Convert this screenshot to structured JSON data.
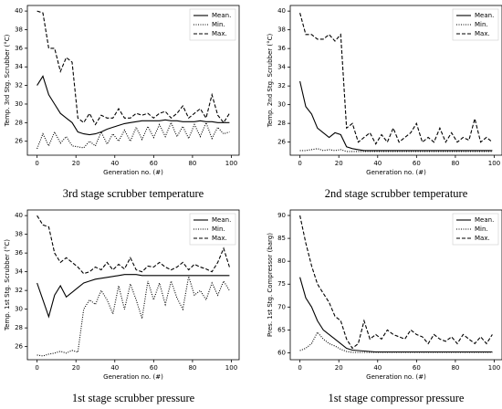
{
  "chart_data": [
    {
      "type": "line",
      "title": "3rd stage scrubber temperature",
      "x_label": "Generation no. (#)",
      "y_label": "Temp. 3rd Stg. Scrubber (°C)",
      "x": [
        0,
        3,
        6,
        9,
        12,
        15,
        18,
        21,
        24,
        27,
        30,
        33,
        36,
        39,
        42,
        45,
        48,
        51,
        54,
        57,
        60,
        63,
        66,
        69,
        72,
        75,
        78,
        81,
        84,
        87,
        90,
        93,
        96,
        99
      ],
      "xlim": [
        -5,
        104
      ],
      "xticks": [
        0,
        20,
        40,
        60,
        80,
        100
      ],
      "ylim": [
        24.5,
        40.6
      ],
      "yticks": [
        26,
        28,
        30,
        32,
        34,
        36,
        38,
        40
      ],
      "legend": "upper right",
      "series": [
        {
          "name": "Mean.",
          "color": "#000000",
          "linestyle": "solid",
          "values": [
            32,
            33,
            31,
            30,
            29,
            28.5,
            28,
            27,
            26.8,
            26.7,
            26.8,
            27,
            27.3,
            27.5,
            27.7,
            27.9,
            28,
            28.1,
            28.2,
            28.2,
            28.2,
            28.2,
            28.3,
            28.2,
            28.2,
            28.1,
            28.1,
            28.1,
            28.2,
            28.1,
            28.1,
            28,
            28,
            28
          ]
        },
        {
          "name": "Min.",
          "color": "#000000",
          "linestyle": "dotted",
          "values": [
            25.2,
            26.8,
            25.5,
            27,
            25.8,
            26.5,
            25.5,
            25.4,
            25.3,
            26,
            25.5,
            27,
            25.7,
            26.8,
            26,
            27.2,
            26,
            27.5,
            26.2,
            27.6,
            26.4,
            27.8,
            26.5,
            28,
            26.5,
            27.6,
            26.3,
            27.8,
            26.5,
            28,
            26.3,
            27.5,
            26.8,
            27
          ]
        },
        {
          "name": "Max.",
          "color": "#000000",
          "linestyle": "dashed",
          "values": [
            40,
            39.8,
            36,
            36,
            33.5,
            35,
            34.5,
            28.5,
            28,
            29,
            27.8,
            28.8,
            28.5,
            28.5,
            29.5,
            28.5,
            28.5,
            29,
            28.8,
            29,
            28.5,
            29,
            29.2,
            28.5,
            29,
            29.8,
            28.5,
            29,
            29.5,
            28.5,
            31,
            28.8,
            28,
            29
          ]
        }
      ]
    },
    {
      "type": "line",
      "title": "2nd stage scrubber temperature",
      "x_label": "Generation no. (#)",
      "y_label": "Temp. 2nd Stg. Scrubber (°C)",
      "x": [
        0,
        3,
        6,
        9,
        12,
        15,
        18,
        21,
        24,
        27,
        30,
        33,
        36,
        39,
        42,
        45,
        48,
        51,
        54,
        57,
        60,
        63,
        66,
        69,
        72,
        75,
        78,
        81,
        84,
        87,
        90,
        93,
        96,
        99
      ],
      "xlim": [
        -5,
        104
      ],
      "xticks": [
        0,
        20,
        40,
        60,
        80,
        100
      ],
      "ylim": [
        24.6,
        40.6
      ],
      "yticks": [
        26,
        28,
        30,
        32,
        34,
        36,
        38,
        40
      ],
      "legend": "upper right",
      "series": [
        {
          "name": "Mean.",
          "color": "#000000",
          "linestyle": "solid",
          "values": [
            32.5,
            29.8,
            29,
            27.5,
            27,
            26.5,
            27,
            26.8,
            25.5,
            25.3,
            25.2,
            25.1,
            25.1,
            25.1,
            25.1,
            25.1,
            25.1,
            25.1,
            25.1,
            25.1,
            25.1,
            25.1,
            25.1,
            25.1,
            25.1,
            25.1,
            25.1,
            25.1,
            25.1,
            25.1,
            25.1,
            25.1,
            25.1,
            25.1
          ]
        },
        {
          "name": "Min.",
          "color": "#000000",
          "linestyle": "dotted",
          "values": [
            25.1,
            25.1,
            25.2,
            25.3,
            25.1,
            25.2,
            25.1,
            25.2,
            25,
            25,
            25,
            25,
            25,
            25,
            25,
            25,
            25,
            25,
            25,
            25,
            25,
            25,
            25,
            25,
            25,
            25,
            25,
            25,
            25,
            25,
            25,
            25,
            25,
            25
          ]
        },
        {
          "name": "Max.",
          "color": "#000000",
          "linestyle": "dashed",
          "values": [
            39.8,
            37.5,
            37.5,
            37,
            37,
            37.5,
            36.8,
            37.5,
            27.5,
            28,
            26,
            26.5,
            27,
            25.8,
            26.8,
            26,
            27.5,
            26,
            26.5,
            27,
            28,
            26,
            26.5,
            26,
            27.5,
            26,
            27,
            26,
            26.5,
            26.2,
            28.5,
            26,
            26.5,
            26
          ]
        }
      ]
    },
    {
      "type": "line",
      "title": "1st stage scrubber pressure",
      "x_label": "Generation no. (#)",
      "y_label": "Temp. 1st Stg. Scrubber (°C)",
      "x": [
        0,
        3,
        6,
        9,
        12,
        15,
        18,
        21,
        24,
        27,
        30,
        33,
        36,
        39,
        42,
        45,
        48,
        51,
        54,
        57,
        60,
        63,
        66,
        69,
        72,
        75,
        78,
        81,
        84,
        87,
        90,
        93,
        96,
        99
      ],
      "xlim": [
        -5,
        104
      ],
      "xticks": [
        0,
        20,
        40,
        60,
        80,
        100
      ],
      "ylim": [
        24.6,
        40.6
      ],
      "yticks": [
        26,
        28,
        30,
        32,
        34,
        36,
        38,
        40
      ],
      "legend": "upper right",
      "series": [
        {
          "name": "Mean.",
          "color": "#000000",
          "linestyle": "solid",
          "values": [
            32.8,
            31,
            29.2,
            31.5,
            32.5,
            31.3,
            31.8,
            32.3,
            32.8,
            33,
            33.2,
            33.3,
            33.4,
            33.5,
            33.6,
            33.7,
            33.7,
            33.7,
            33.6,
            33.6,
            33.6,
            33.6,
            33.6,
            33.6,
            33.6,
            33.6,
            33.6,
            33.6,
            33.6,
            33.6,
            33.6,
            33.6,
            33.6,
            33.6
          ]
        },
        {
          "name": "Min.",
          "color": "#000000",
          "linestyle": "dotted",
          "values": [
            25.1,
            25,
            25.2,
            25.3,
            25.5,
            25.3,
            25.6,
            25.4,
            30,
            31,
            30.5,
            32,
            31,
            29.5,
            32.5,
            30,
            32.7,
            31,
            29,
            33,
            31,
            32.8,
            30.5,
            33,
            31.2,
            30,
            33.5,
            31.5,
            32,
            31,
            32.8,
            31.5,
            33,
            32
          ]
        },
        {
          "name": "Max.",
          "color": "#000000",
          "linestyle": "dashed",
          "values": [
            40,
            39,
            38.8,
            36,
            35,
            35.5,
            35,
            34.5,
            33.8,
            34,
            34.5,
            34.2,
            35,
            34.2,
            34.8,
            34.3,
            35.5,
            34.2,
            34,
            34.6,
            34.5,
            35,
            34.5,
            34.2,
            34.5,
            35,
            34.2,
            34.8,
            34.5,
            34.3,
            34,
            35,
            36.5,
            34.5
          ]
        }
      ]
    },
    {
      "type": "line",
      "title": "1st stage compressor pressure",
      "x_label": "Generation no. (#)",
      "y_label": "Pres. 1st Stg. Compressor (barg)",
      "x": [
        0,
        3,
        6,
        9,
        12,
        15,
        18,
        21,
        24,
        27,
        30,
        33,
        36,
        39,
        42,
        45,
        48,
        51,
        54,
        57,
        60,
        63,
        66,
        69,
        72,
        75,
        78,
        81,
        84,
        87,
        90,
        93,
        96,
        99
      ],
      "xlim": [
        -5,
        104
      ],
      "xticks": [
        0,
        20,
        40,
        60,
        80,
        100
      ],
      "ylim": [
        58.5,
        91.2
      ],
      "yticks": [
        60,
        65,
        70,
        75,
        80,
        85,
        90
      ],
      "legend": "upper right",
      "series": [
        {
          "name": "Mean.",
          "color": "#000000",
          "linestyle": "solid",
          "values": [
            76.5,
            72,
            70,
            67,
            65,
            64,
            63,
            62,
            61,
            60.6,
            60.5,
            60.4,
            60.3,
            60.2,
            60.2,
            60.2,
            60.2,
            60.2,
            60.2,
            60.2,
            60.2,
            60.2,
            60.2,
            60.2,
            60.2,
            60.2,
            60.2,
            60.2,
            60.2,
            60.2,
            60.2,
            60.2,
            60.2,
            60.2
          ]
        },
        {
          "name": "Min.",
          "color": "#000000",
          "linestyle": "dotted",
          "values": [
            60.5,
            61,
            62,
            64.5,
            63,
            62,
            61.5,
            60.8,
            60.3,
            60.1,
            60.1,
            60.1,
            60.1,
            60.1,
            60.1,
            60.1,
            60.1,
            60.1,
            60.1,
            60.1,
            60.1,
            60.1,
            60.1,
            60.1,
            60.1,
            60.1,
            60.1,
            60.1,
            60.1,
            60.1,
            60.1,
            60.1,
            60.1,
            60.1
          ]
        },
        {
          "name": "Max.",
          "color": "#000000",
          "linestyle": "dashed",
          "values": [
            90,
            84,
            79,
            75,
            73,
            71,
            68,
            67,
            63,
            61,
            62,
            67,
            63,
            64,
            63,
            65,
            64,
            63.5,
            63,
            65,
            64,
            63.5,
            62,
            64,
            63,
            62.5,
            63.5,
            62,
            64,
            63,
            62,
            63.5,
            62,
            64
          ]
        }
      ]
    }
  ]
}
